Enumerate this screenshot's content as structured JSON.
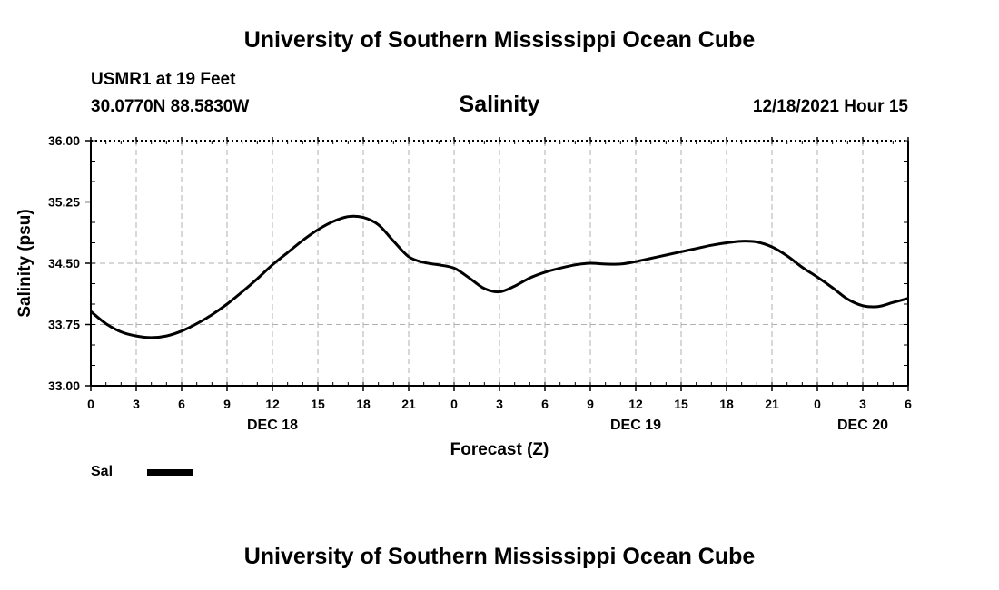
{
  "header": {
    "title": "University of Southern Mississippi Ocean Cube",
    "station": "USMR1 at 19 Feet",
    "coords": "30.0770N  88.5830W",
    "parameter": "Salinity",
    "datetime": "12/18/2021 Hour 15"
  },
  "footer": {
    "title": "University of Southern Mississippi Ocean Cube"
  },
  "legend": {
    "label": "Sal"
  },
  "chart_data": {
    "type": "line",
    "title": "Salinity",
    "xlabel": "Forecast (Z)",
    "ylabel": "Salinity (psu)",
    "xlim": [
      0,
      54
    ],
    "ylim": [
      33.0,
      36.0
    ],
    "grid": true,
    "legend_position": "bottom-left",
    "y_ticks": [
      "33.00",
      "33.75",
      "34.50",
      "35.25",
      "36.00"
    ],
    "x_tick_labels": [
      "0",
      "3",
      "6",
      "9",
      "12",
      "15",
      "18",
      "21",
      "0",
      "3",
      "6",
      "9",
      "12",
      "15",
      "18",
      "21",
      "0",
      "3",
      "6"
    ],
    "day_labels": [
      {
        "text": "DEC 18",
        "hour": 12
      },
      {
        "text": "DEC 19",
        "hour": 36
      },
      {
        "text": "DEC 20",
        "hour": 51
      }
    ],
    "series": [
      {
        "name": "Sal",
        "x": [
          0,
          1,
          2,
          3,
          4,
          5,
          6,
          7,
          8,
          9,
          10,
          11,
          12,
          13,
          14,
          15,
          16,
          17,
          18,
          19,
          20,
          21,
          22,
          23,
          24,
          25,
          26,
          27,
          28,
          29,
          30,
          31,
          32,
          33,
          34,
          35,
          36,
          37,
          38,
          39,
          40,
          41,
          42,
          43,
          44,
          45,
          46,
          47,
          48,
          49,
          50,
          51,
          52,
          53,
          54
        ],
        "values": [
          33.91,
          33.76,
          33.66,
          33.61,
          33.59,
          33.61,
          33.67,
          33.76,
          33.87,
          34.0,
          34.15,
          34.31,
          34.48,
          34.63,
          34.78,
          34.91,
          35.01,
          35.07,
          35.06,
          34.97,
          34.77,
          34.58,
          34.51,
          34.48,
          34.44,
          34.32,
          34.19,
          34.15,
          34.22,
          34.32,
          34.39,
          34.44,
          34.48,
          34.5,
          34.49,
          34.49,
          34.52,
          34.56,
          34.6,
          34.64,
          34.68,
          34.72,
          34.75,
          34.77,
          34.76,
          34.7,
          34.59,
          34.45,
          34.33,
          34.2,
          34.06,
          33.98,
          33.97,
          34.02,
          34.07
        ]
      }
    ]
  }
}
